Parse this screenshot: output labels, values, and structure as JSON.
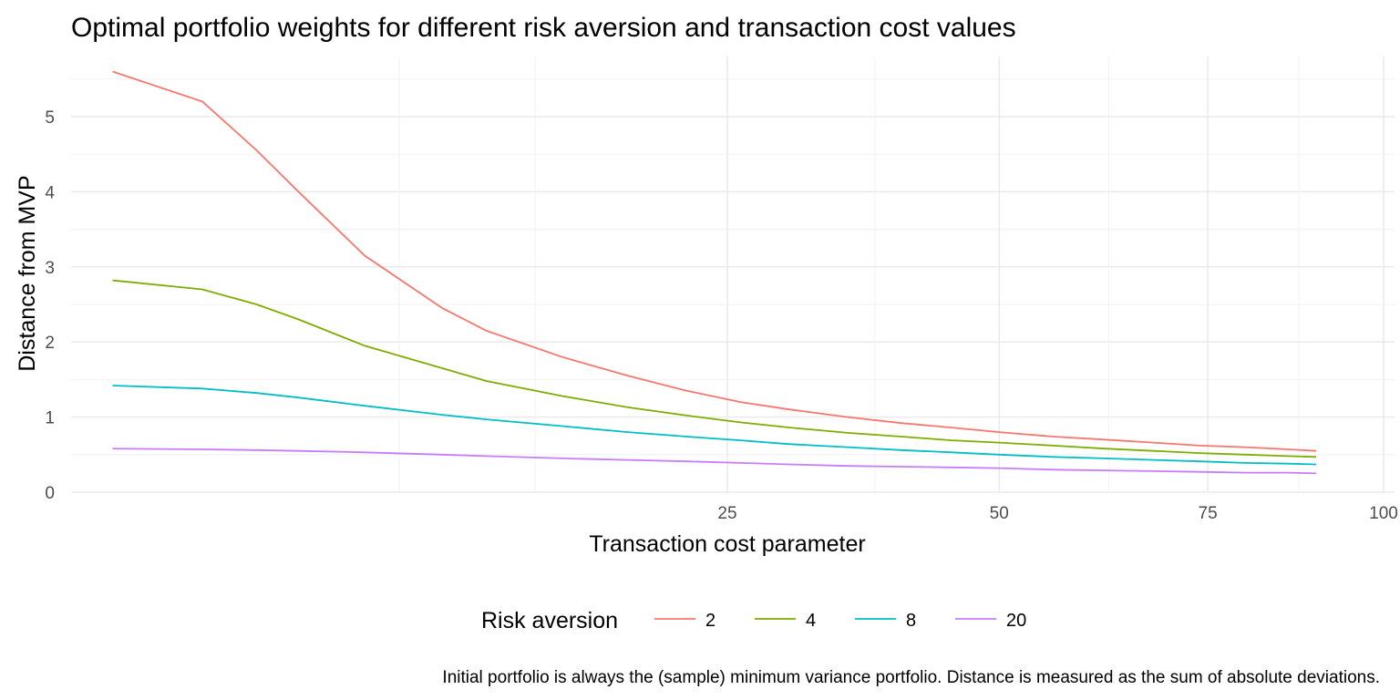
{
  "chart_data": {
    "type": "line",
    "title": "Optimal portfolio weights for different risk aversion and transaction cost values",
    "xlabel": "Transaction cost parameter",
    "ylabel": "Distance from MVP",
    "caption": "Initial portfolio is always the (sample) minimum variance portfolio. Distance is measured as the sum of absolute deviations.",
    "x_scale": "sqrt",
    "xlim": [
      0,
      100
    ],
    "ylim": [
      0,
      5.8
    ],
    "x_ticks": [
      25,
      50,
      75,
      100
    ],
    "x_tick_labels": [
      "25",
      "50",
      "75",
      "100"
    ],
    "y_ticks": [
      0,
      1,
      2,
      3,
      4,
      5
    ],
    "y_tick_labels": [
      "0",
      "1",
      "2",
      "3",
      "4",
      "5"
    ],
    "grid": true,
    "legend": {
      "title": "Risk aversion",
      "position": "bottom"
    },
    "x": [
      0.1,
      1,
      2,
      3,
      5,
      8,
      10,
      14,
      18,
      22,
      26,
      30,
      35,
      40,
      45,
      50,
      56,
      62,
      68,
      74,
      80,
      86,
      90
    ],
    "series": [
      {
        "name": "2",
        "color": "#f8766d",
        "values": [
          5.6,
          5.2,
          4.55,
          4.0,
          3.15,
          2.45,
          2.15,
          1.8,
          1.55,
          1.35,
          1.2,
          1.1,
          1.0,
          0.92,
          0.86,
          0.8,
          0.74,
          0.7,
          0.66,
          0.62,
          0.6,
          0.57,
          0.55
        ]
      },
      {
        "name": "4",
        "color": "#7cae00",
        "values": [
          2.82,
          2.7,
          2.5,
          2.3,
          1.95,
          1.65,
          1.48,
          1.28,
          1.13,
          1.02,
          0.93,
          0.86,
          0.79,
          0.74,
          0.69,
          0.66,
          0.62,
          0.58,
          0.55,
          0.52,
          0.5,
          0.48,
          0.47
        ]
      },
      {
        "name": "8",
        "color": "#00bfc4",
        "values": [
          1.42,
          1.38,
          1.32,
          1.26,
          1.15,
          1.03,
          0.97,
          0.88,
          0.8,
          0.74,
          0.69,
          0.64,
          0.6,
          0.56,
          0.53,
          0.5,
          0.47,
          0.45,
          0.43,
          0.41,
          0.39,
          0.38,
          0.37
        ]
      },
      {
        "name": "20",
        "color": "#c77cff",
        "values": [
          0.58,
          0.57,
          0.56,
          0.55,
          0.53,
          0.5,
          0.48,
          0.45,
          0.43,
          0.41,
          0.39,
          0.37,
          0.35,
          0.34,
          0.33,
          0.32,
          0.3,
          0.29,
          0.28,
          0.27,
          0.26,
          0.26,
          0.25
        ]
      }
    ]
  }
}
